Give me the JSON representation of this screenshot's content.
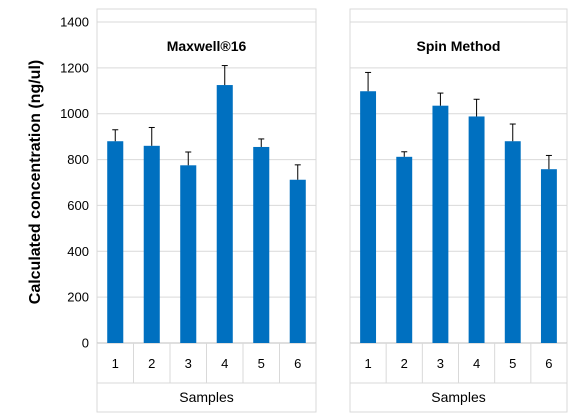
{
  "chart_data": {
    "type": "bar",
    "ylabel": "Calculated concentration (ng/ul)",
    "ylim": [
      0,
      1400
    ],
    "yticks": [
      0,
      200,
      400,
      600,
      800,
      1000,
      1200,
      1400
    ],
    "ytick_labels": [
      "0",
      "200",
      "400",
      "600",
      "800",
      "1000",
      "1200",
      "1400"
    ],
    "grid": true,
    "bar_color": "#0070C0",
    "panels": [
      {
        "title": "Maxwell®16",
        "xlabel": "Samples",
        "categories": [
          "1",
          "2",
          "3",
          "4",
          "5",
          "6"
        ],
        "values": [
          880,
          860,
          775,
          1125,
          855,
          712
        ],
        "error_plus": [
          50,
          80,
          58,
          85,
          35,
          65
        ]
      },
      {
        "title": "Spin Method",
        "xlabel": "Samples",
        "categories": [
          "1",
          "2",
          "3",
          "4",
          "5",
          "6"
        ],
        "values": [
          1098,
          812,
          1035,
          988,
          880,
          758
        ],
        "error_plus": [
          82,
          22,
          55,
          75,
          75,
          60
        ]
      }
    ]
  }
}
